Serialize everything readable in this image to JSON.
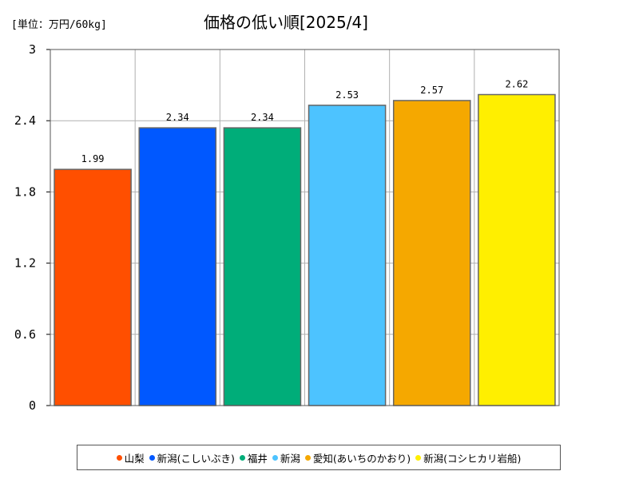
{
  "unit_label": "[単位：万円/60kg]",
  "chart_data": {
    "type": "bar",
    "title": "価格の低い順[2025/4]",
    "categories": [
      "山梨",
      "新潟(こしいぶき)",
      "福井",
      "新潟",
      "愛知(あいちのかおり)",
      "新潟(コシヒカリ岩船)"
    ],
    "values": [
      1.99,
      2.34,
      2.34,
      2.53,
      2.57,
      2.62
    ],
    "value_labels": [
      "1.99",
      "2.34",
      "2.34",
      "2.53",
      "2.57",
      "2.62"
    ],
    "colors": [
      "#ff4f00",
      "#0058ff",
      "#00ad79",
      "#4dc3ff",
      "#f5a800",
      "#ffef00"
    ],
    "ylim": [
      0,
      3
    ],
    "yticks": [
      "0",
      "0.6",
      "1.2",
      "1.8",
      "2.4",
      "3"
    ],
    "grid": true,
    "legend_position": "bottom"
  }
}
